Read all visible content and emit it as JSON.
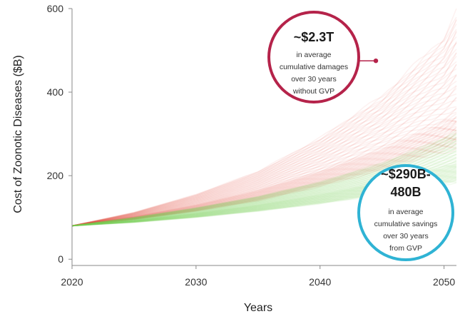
{
  "chart_data": {
    "type": "area",
    "xlabel": "Years",
    "ylabel": "Cost of Zoonotic Diseases ($B)",
    "xlim": [
      2020,
      2051
    ],
    "ylim": [
      -15,
      600
    ],
    "x_ticks": [
      2020,
      2030,
      2040,
      2050
    ],
    "y_ticks": [
      0,
      200,
      400,
      600
    ],
    "grid": false,
    "start_value": 80,
    "series": [
      {
        "color": "#e0423a",
        "x": [
          2020,
          2025,
          2030,
          2035,
          2040,
          2045,
          2050,
          2051
        ],
        "low": [
          80,
          95,
          115,
          140,
          175,
          215,
          260,
          270
        ],
        "median": [
          80,
          102,
          130,
          165,
          210,
          265,
          330,
          345
        ],
        "high": [
          80,
          112,
          155,
          210,
          290,
          390,
          530,
          590
        ]
      },
      {
        "color": "#79d45c",
        "x": [
          2020,
          2025,
          2030,
          2035,
          2040,
          2045,
          2050,
          2051
        ],
        "low": [
          80,
          88,
          100,
          115,
          133,
          155,
          180,
          185
        ],
        "median": [
          80,
          93,
          110,
          130,
          155,
          185,
          222,
          230
        ],
        "high": [
          80,
          100,
          123,
          150,
          185,
          230,
          290,
          305
        ]
      }
    ],
    "annotations": [
      {
        "headline": "~$2.3T",
        "lines": [
          "in average",
          "cumulative damages",
          "over 30 years",
          "without GVP"
        ],
        "ring_color": "#b5234a",
        "points_to": {
          "x": 2044.5,
          "y": 475
        }
      },
      {
        "headline": [
          "~$290B-",
          "480B"
        ],
        "lines": [
          "in average",
          "cumulative savings",
          "over 30 years",
          "from GVP"
        ],
        "ring_color": "#2fb3d4"
      }
    ]
  }
}
